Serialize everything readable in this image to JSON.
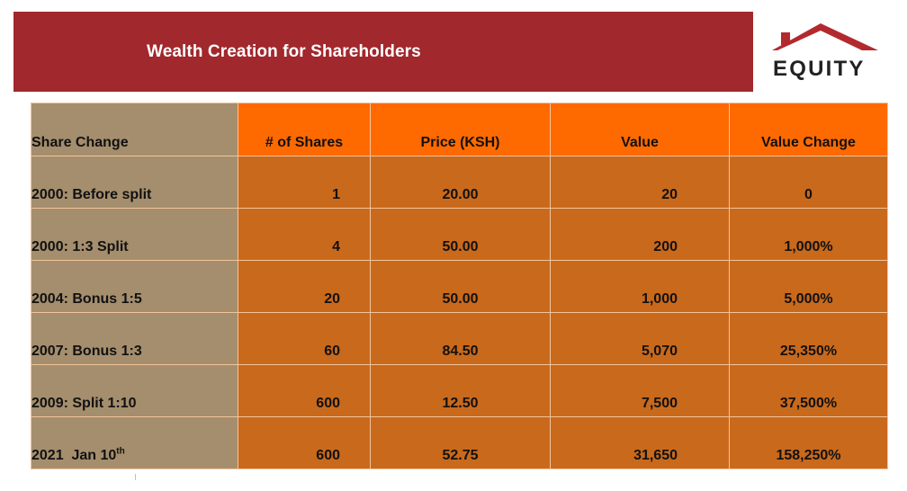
{
  "header": {
    "title": "Wealth Creation for Shareholders",
    "banner_color": "#a1282c"
  },
  "logo": {
    "text": "EQUITY",
    "roof_color": "#b22a2e",
    "icon": "house-roof-icon"
  },
  "table": {
    "columns": [
      "Share Change",
      "# of Shares",
      "Price (KSH)",
      "Value",
      "Value Change"
    ],
    "rows": [
      {
        "label": "2000: Before split",
        "label_sup": "",
        "shares": "1",
        "price": "20.00",
        "value": "20",
        "change": "0"
      },
      {
        "label": "2000: 1:3 Split",
        "label_sup": "",
        "shares": "4",
        "price": "50.00",
        "value": "200",
        "change": "1,000%"
      },
      {
        "label": "2004: Bonus 1:5",
        "label_sup": "",
        "shares": "20",
        "price": "50.00",
        "value": "1,000",
        "change": "5,000%"
      },
      {
        "label": "2007: Bonus 1:3",
        "label_sup": "",
        "shares": "60",
        "price": "84.50",
        "value": "5,070",
        "change": "25,350%"
      },
      {
        "label": "2009: Split 1:10",
        "label_sup": "",
        "shares": "600",
        "price": "12.50",
        "value": "7,500",
        "change": "37,500%"
      },
      {
        "label": "2021  Jan 10",
        "label_sup": "th",
        "shares": "600",
        "price": "52.75",
        "value": "31,650",
        "change": "158,250%"
      }
    ],
    "colors": {
      "header_first": "#a58e6d",
      "header": "#ff6a00",
      "label_column": "#a58e6d",
      "cells": "#c9691c"
    }
  }
}
